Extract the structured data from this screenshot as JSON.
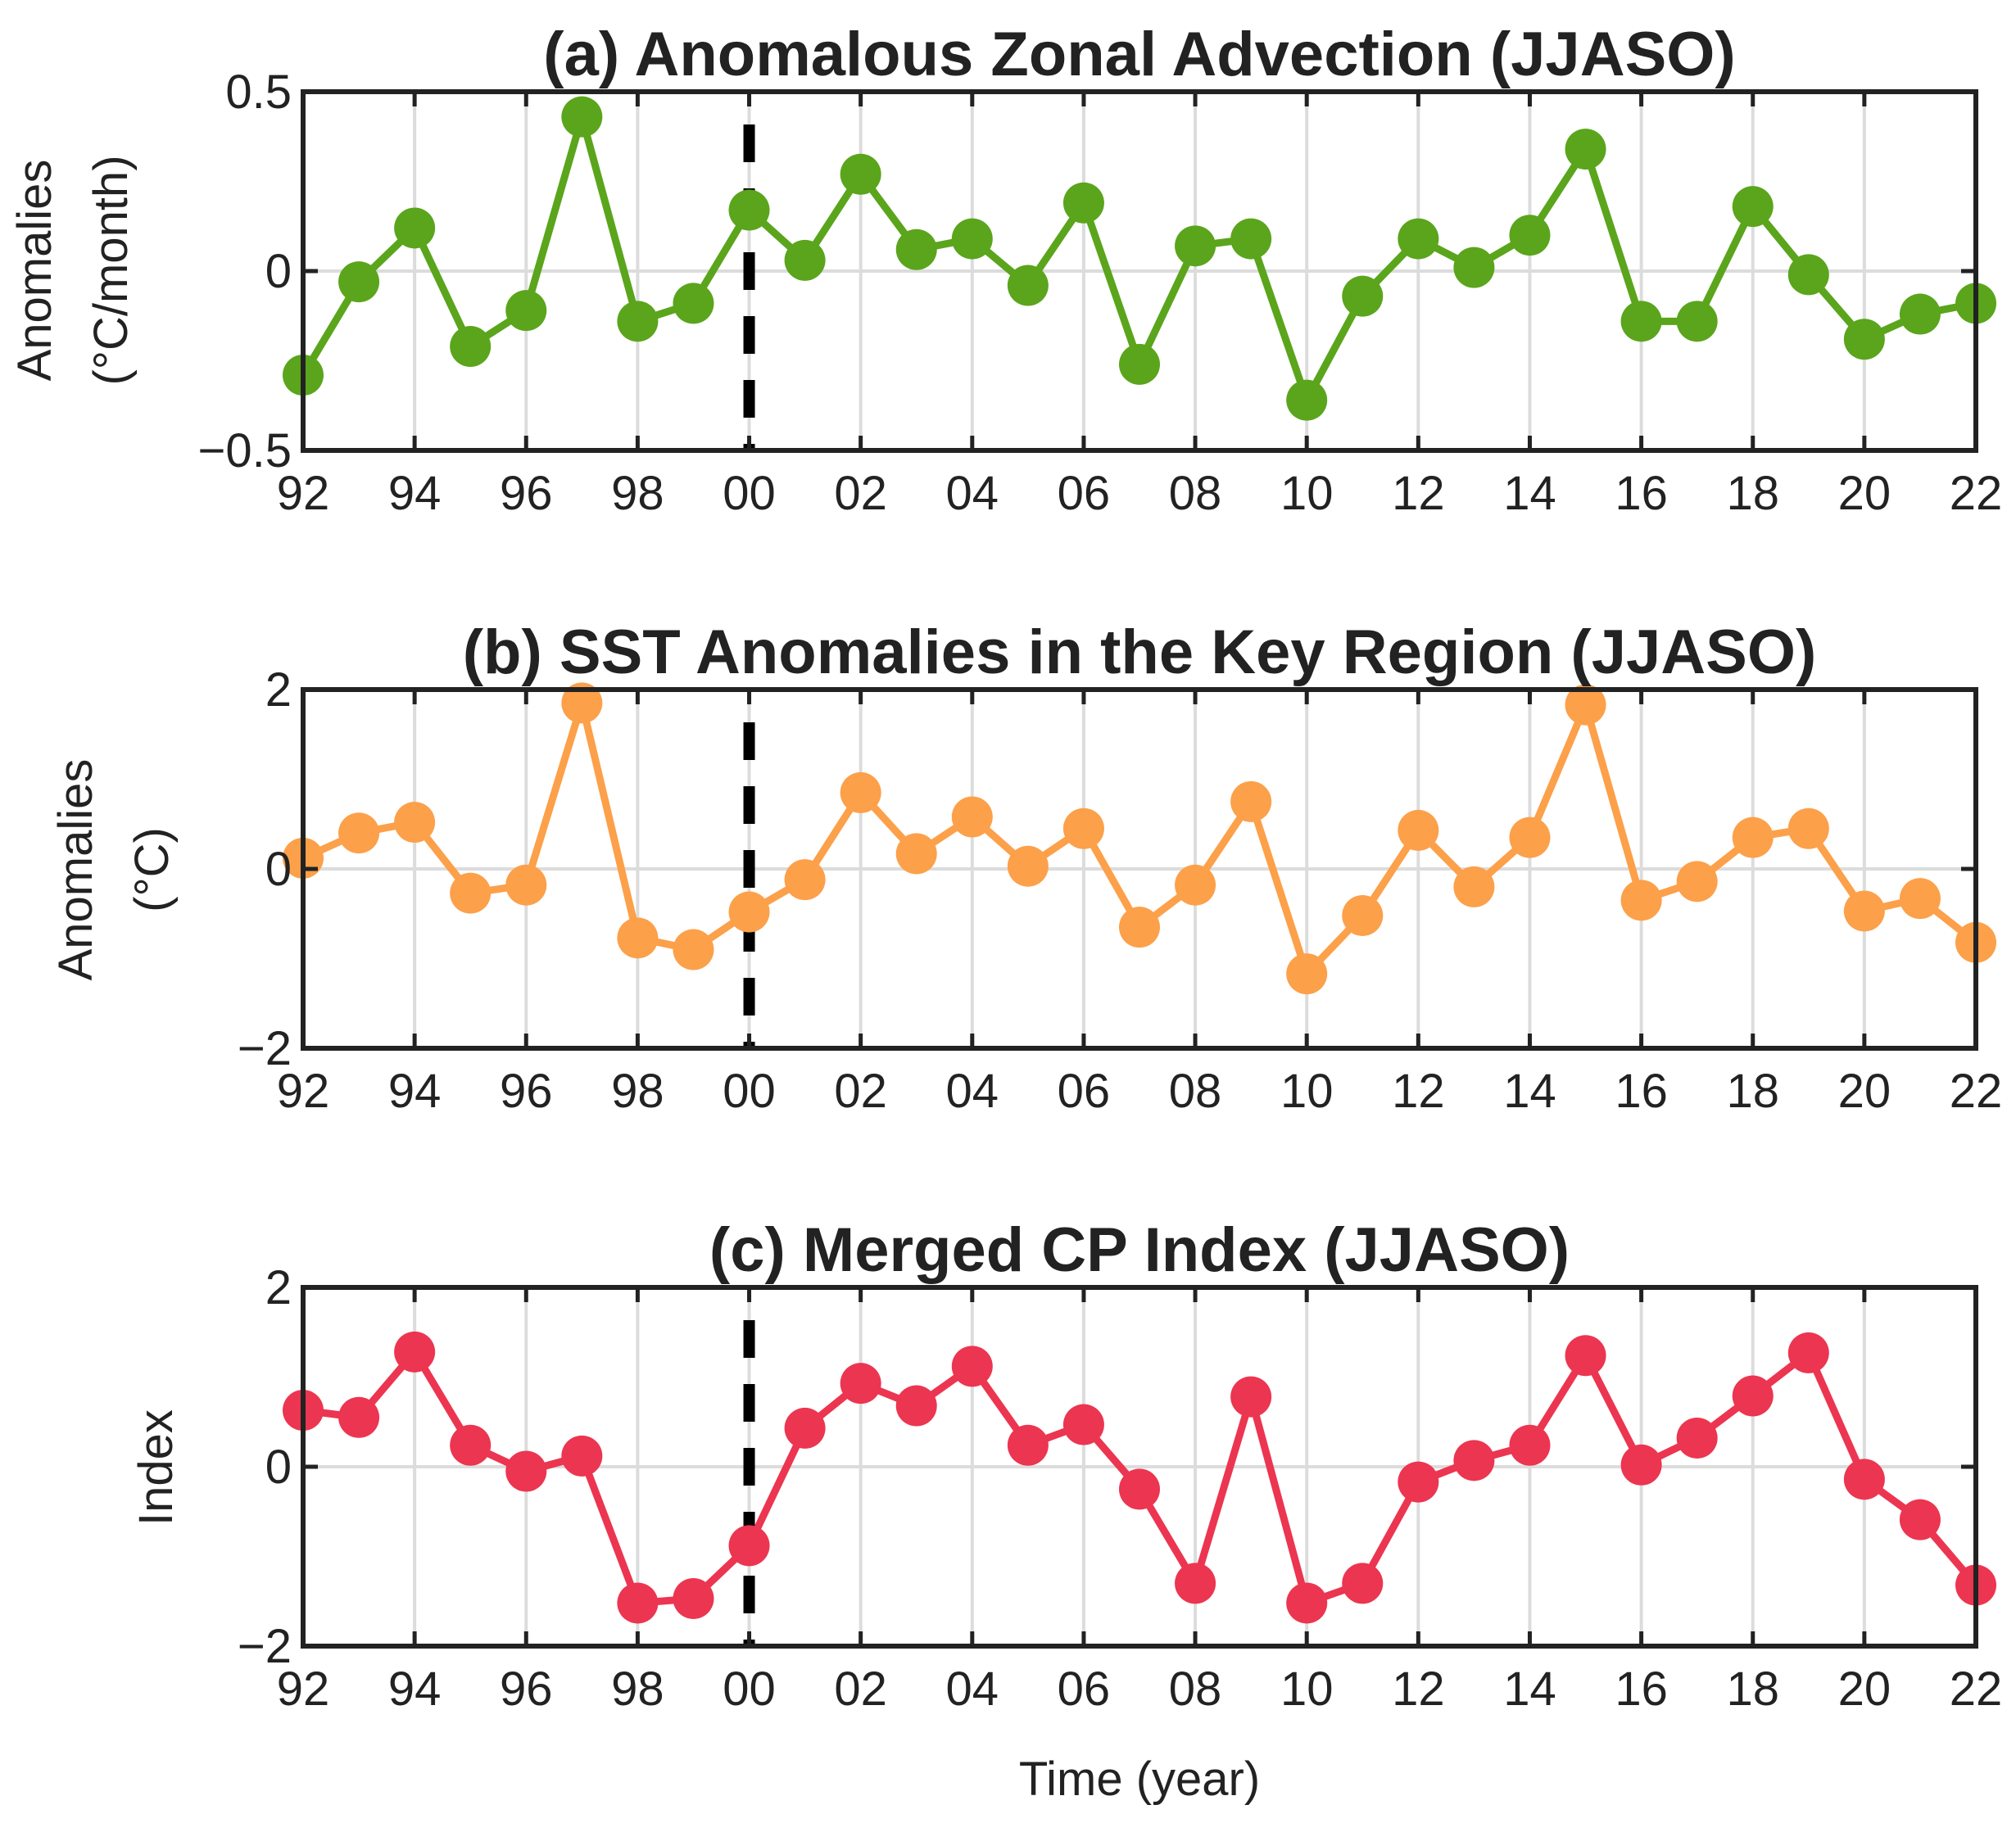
{
  "chart_data": [
    {
      "type": "line",
      "title": "(a) Anomalous Zonal Advection (JJASO)",
      "ylabel": [
        "Anomalies",
        "(°C/month)"
      ],
      "xlabel": "",
      "color": "#5aa51c",
      "ylim": [
        -0.5,
        0.5
      ],
      "yticks": [
        -0.5,
        0,
        0.5
      ],
      "ytick_labels": [
        "−0.5",
        "0",
        "0.5"
      ],
      "x": [
        1992,
        1993,
        1994,
        1995,
        1996,
        1997,
        1998,
        1999,
        2000,
        2001,
        2002,
        2003,
        2004,
        2005,
        2006,
        2007,
        2008,
        2009,
        2010,
        2011,
        2012,
        2013,
        2014,
        2015,
        2016,
        2017,
        2018,
        2019,
        2020,
        2021,
        2022
      ],
      "values": [
        -0.29,
        -0.03,
        0.12,
        -0.21,
        -0.11,
        0.43,
        -0.14,
        -0.09,
        0.17,
        0.03,
        0.27,
        0.06,
        0.09,
        -0.04,
        0.19,
        -0.26,
        0.07,
        0.09,
        -0.36,
        -0.07,
        0.09,
        0.01,
        0.1,
        0.34,
        -0.14,
        -0.14,
        0.18,
        -0.01,
        -0.19,
        -0.12,
        -0.09
      ],
      "xticks": [
        1992,
        1994,
        1996,
        1998,
        2000,
        2002,
        2004,
        2006,
        2008,
        2010,
        2012,
        2014,
        2016,
        2018,
        2020,
        2022
      ],
      "xtick_labels": [
        "92",
        "94",
        "96",
        "98",
        "00",
        "02",
        "04",
        "06",
        "08",
        "10",
        "12",
        "14",
        "16",
        "18",
        "20",
        "22"
      ],
      "marker_year": 2000
    },
    {
      "type": "line",
      "title": "(b) SST Anomalies in the Key Region (JJASO)",
      "ylabel": [
        "Anomalies",
        "(°C)"
      ],
      "xlabel": "",
      "color": "#fca04a",
      "ylim": [
        -2,
        2
      ],
      "yticks": [
        -2,
        0,
        2
      ],
      "ytick_labels": [
        "−2",
        "0",
        "2"
      ],
      "x": [
        1992,
        1993,
        1994,
        1995,
        1996,
        1997,
        1998,
        1999,
        2000,
        2001,
        2002,
        2003,
        2004,
        2005,
        2006,
        2007,
        2008,
        2009,
        2010,
        2011,
        2012,
        2013,
        2014,
        2015,
        2016,
        2017,
        2018,
        2019,
        2020,
        2021,
        2022
      ],
      "values": [
        0.12,
        0.4,
        0.52,
        -0.27,
        -0.18,
        1.85,
        -0.77,
        -0.9,
        -0.48,
        -0.12,
        0.85,
        0.17,
        0.58,
        0.03,
        0.45,
        -0.65,
        -0.18,
        0.75,
        -1.17,
        -0.52,
        0.43,
        -0.2,
        0.35,
        1.83,
        -0.35,
        -0.14,
        0.35,
        0.45,
        -0.47,
        -0.33,
        -0.82
      ],
      "xticks": [
        1992,
        1994,
        1996,
        1998,
        2000,
        2002,
        2004,
        2006,
        2008,
        2010,
        2012,
        2014,
        2016,
        2018,
        2020,
        2022
      ],
      "xtick_labels": [
        "92",
        "94",
        "96",
        "98",
        "00",
        "02",
        "04",
        "06",
        "08",
        "10",
        "12",
        "14",
        "16",
        "18",
        "20",
        "22"
      ],
      "marker_year": 2000
    },
    {
      "type": "line",
      "title": "(c) Merged CP Index (JJASO)",
      "ylabel": [
        "Index"
      ],
      "xlabel": "Time (year)",
      "color": "#ec3550",
      "ylim": [
        -2,
        2
      ],
      "yticks": [
        -2,
        0,
        2
      ],
      "ytick_labels": [
        "−2",
        "0",
        "2"
      ],
      "x": [
        1992,
        1993,
        1994,
        1995,
        1996,
        1997,
        1998,
        1999,
        2000,
        2001,
        2002,
        2003,
        2004,
        2005,
        2006,
        2007,
        2008,
        2009,
        2010,
        2011,
        2012,
        2013,
        2014,
        2015,
        2016,
        2017,
        2018,
        2019,
        2020,
        2021,
        2022
      ],
      "values": [
        0.63,
        0.55,
        1.28,
        0.24,
        -0.05,
        0.12,
        -1.52,
        -1.47,
        -0.88,
        0.43,
        0.93,
        0.68,
        1.12,
        0.24,
        0.47,
        -0.25,
        -1.3,
        0.78,
        -1.52,
        -1.3,
        -0.17,
        0.07,
        0.24,
        1.24,
        0.02,
        0.32,
        0.79,
        1.27,
        -0.14,
        -0.59,
        -1.32
      ],
      "xticks": [
        1992,
        1994,
        1996,
        1998,
        2000,
        2002,
        2004,
        2006,
        2008,
        2010,
        2012,
        2014,
        2016,
        2018,
        2020,
        2022
      ],
      "xtick_labels": [
        "92",
        "94",
        "96",
        "98",
        "00",
        "02",
        "04",
        "06",
        "08",
        "10",
        "12",
        "14",
        "16",
        "18",
        "20",
        "22"
      ],
      "marker_year": 2000
    }
  ]
}
